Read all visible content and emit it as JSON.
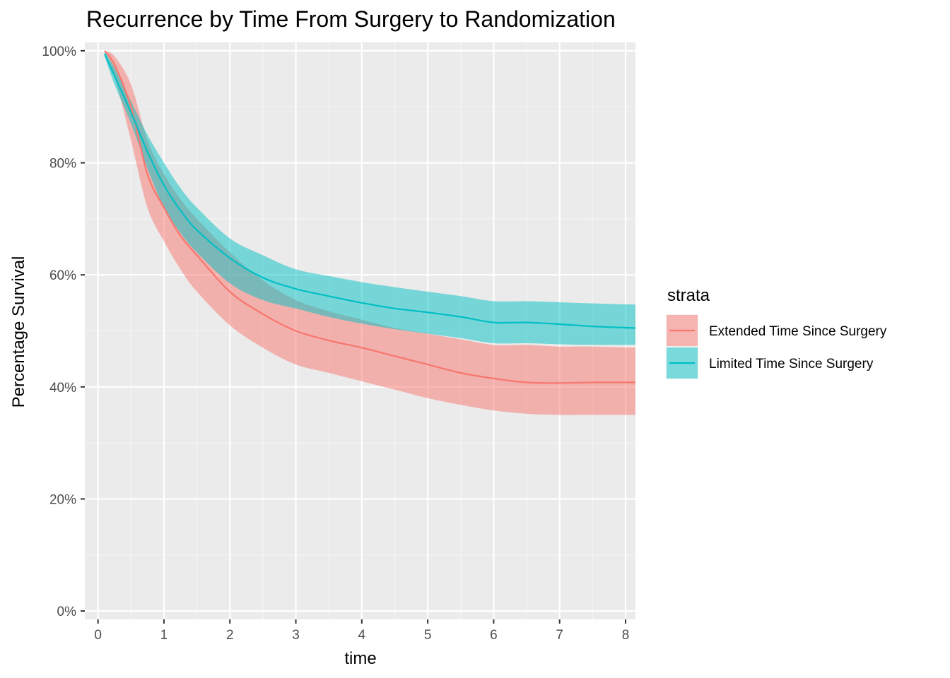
{
  "chart_data": {
    "type": "line",
    "title": "Recurrence by Time From Surgery to Randomization",
    "xlabel": "time",
    "ylabel": "Percentage Survival",
    "xlim": [
      -0.2,
      8.15
    ],
    "ylim": [
      -0.015,
      1.015
    ],
    "x_ticks": [
      0,
      1,
      2,
      3,
      4,
      5,
      6,
      7,
      8
    ],
    "x_tick_labels": [
      "0",
      "1",
      "2",
      "3",
      "4",
      "5",
      "6",
      "7",
      "8"
    ],
    "y_ticks": [
      0,
      0.2,
      0.4,
      0.6,
      0.8,
      1.0
    ],
    "y_tick_labels": [
      "0%",
      "20%",
      "40%",
      "60%",
      "80%",
      "100%"
    ],
    "grid": true,
    "legend": {
      "title": "strata",
      "position": "right"
    },
    "series": [
      {
        "name": "Extended Time Since Surgery",
        "color": "#F8766D",
        "x": [
          0.1,
          0.25,
          0.5,
          0.75,
          1.0,
          1.25,
          1.5,
          2.0,
          2.5,
          3.0,
          3.5,
          4.0,
          4.5,
          5.0,
          5.5,
          6.0,
          6.5,
          7.0,
          7.5,
          8.15
        ],
        "y": [
          1.0,
          0.975,
          0.9,
          0.78,
          0.72,
          0.67,
          0.635,
          0.57,
          0.53,
          0.5,
          0.483,
          0.47,
          0.455,
          0.44,
          0.425,
          0.415,
          0.408,
          0.407,
          0.408,
          0.408
        ],
        "lower": [
          1.0,
          0.955,
          0.84,
          0.72,
          0.66,
          0.61,
          0.57,
          0.51,
          0.47,
          0.44,
          0.425,
          0.41,
          0.395,
          0.38,
          0.368,
          0.358,
          0.352,
          0.35,
          0.35,
          0.35
        ],
        "upper": [
          1.0,
          0.99,
          0.94,
          0.84,
          0.78,
          0.735,
          0.7,
          0.64,
          0.59,
          0.555,
          0.535,
          0.52,
          0.505,
          0.495,
          0.485,
          0.475,
          0.475,
          0.472,
          0.472,
          0.47
        ]
      },
      {
        "name": "Limited Time Since Surgery",
        "color": "#00BFC4",
        "x": [
          0.1,
          0.25,
          0.5,
          0.75,
          1.0,
          1.25,
          1.5,
          2.0,
          2.5,
          3.0,
          3.5,
          4.0,
          4.5,
          5.0,
          5.5,
          6.0,
          6.5,
          7.0,
          7.5,
          8.15
        ],
        "y": [
          0.995,
          0.955,
          0.89,
          0.82,
          0.76,
          0.715,
          0.68,
          0.63,
          0.595,
          0.575,
          0.562,
          0.55,
          0.54,
          0.533,
          0.525,
          0.515,
          0.515,
          0.512,
          0.508,
          0.505
        ],
        "lower": [
          0.99,
          0.94,
          0.87,
          0.79,
          0.72,
          0.675,
          0.64,
          0.585,
          0.555,
          0.54,
          0.525,
          0.513,
          0.503,
          0.495,
          0.487,
          0.478,
          0.478,
          0.476,
          0.475,
          0.475
        ],
        "upper": [
          0.998,
          0.97,
          0.91,
          0.85,
          0.8,
          0.755,
          0.72,
          0.665,
          0.635,
          0.61,
          0.598,
          0.587,
          0.578,
          0.57,
          0.562,
          0.553,
          0.553,
          0.551,
          0.549,
          0.547
        ]
      }
    ]
  }
}
